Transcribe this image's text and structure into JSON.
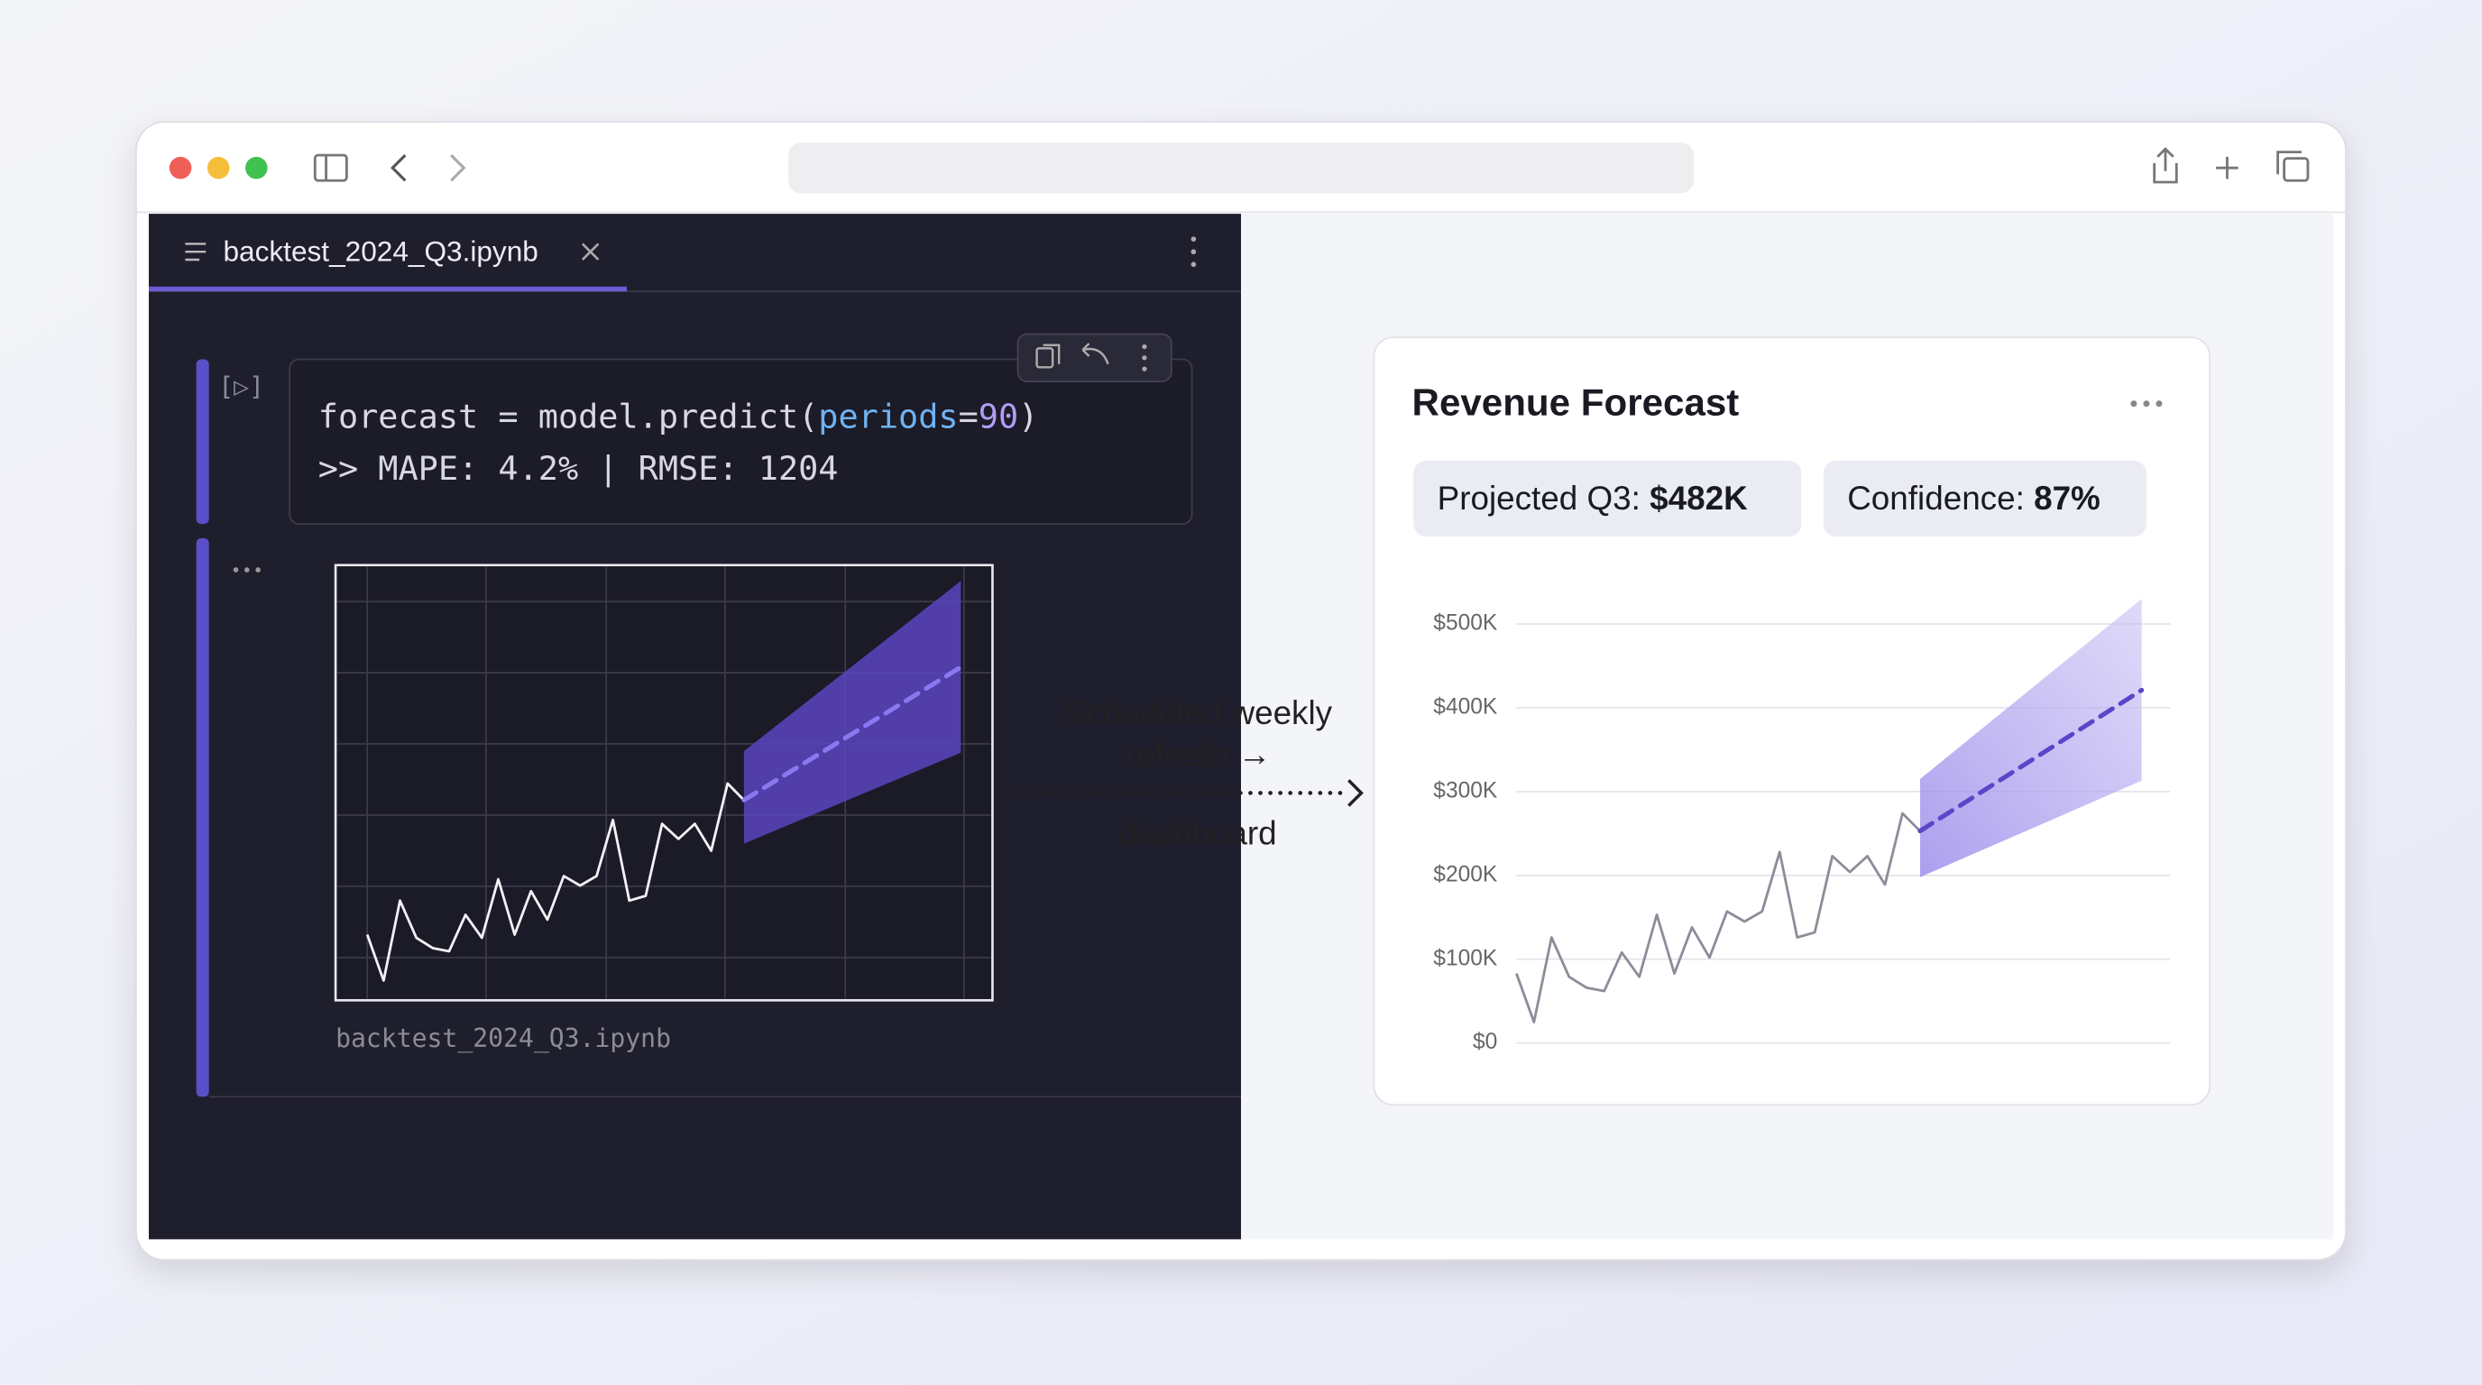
{
  "window": {
    "tab_title": "backtest_2024_Q3.ipynb"
  },
  "notebook": {
    "prompt": "[▷]",
    "code": [
      "forecast = model.predict(",
      "periods",
      "=",
      "90",
      ")"
    ],
    "output": ">> MAPE: 4.2% | RMSE: 1204",
    "caption": "backtest_2024_Q3.ipynb"
  },
  "annotation": {
    "lines": [
      "Scheduled weekly",
      "refresh →"
    ],
    "target": "dashboard"
  },
  "dashboard": {
    "pills": [
      {
        "label": "Projected Q3: ",
        "value": "$482K"
      },
      {
        "label": "Confidence: ",
        "value": "87%"
      }
    ],
    "chart_data": {
      "type": "line",
      "title": "Revenue Forecast",
      "ylim": [
        0,
        540000
      ],
      "yticks": [
        {
          "value": 0,
          "label": "$0"
        },
        {
          "value": 100000,
          "label": "$100K"
        },
        {
          "value": 200000,
          "label": "$200K"
        },
        {
          "value": 300000,
          "label": "$300K"
        },
        {
          "value": 400000,
          "label": "$400K"
        },
        {
          "value": 500000,
          "label": "$500K"
        }
      ],
      "grid": true,
      "series": [
        {
          "color": "#8e8c99",
          "values": [
            83000,
            25000,
            126000,
            79000,
            66000,
            62000,
            108000,
            79000,
            153000,
            83000,
            138000,
            102000,
            157000,
            145000,
            157000,
            228000,
            126000,
            132000,
            223000,
            204000,
            223000,
            189000,
            274000,
            253000
          ]
        },
        {
          "color": "#5b45c8",
          "dashed": true,
          "values": [
            253000,
            421000
          ]
        }
      ],
      "band": {
        "color": "#a99cf0",
        "lower": [
          198000,
          313000
        ],
        "upper": [
          315000,
          530000
        ]
      }
    }
  }
}
